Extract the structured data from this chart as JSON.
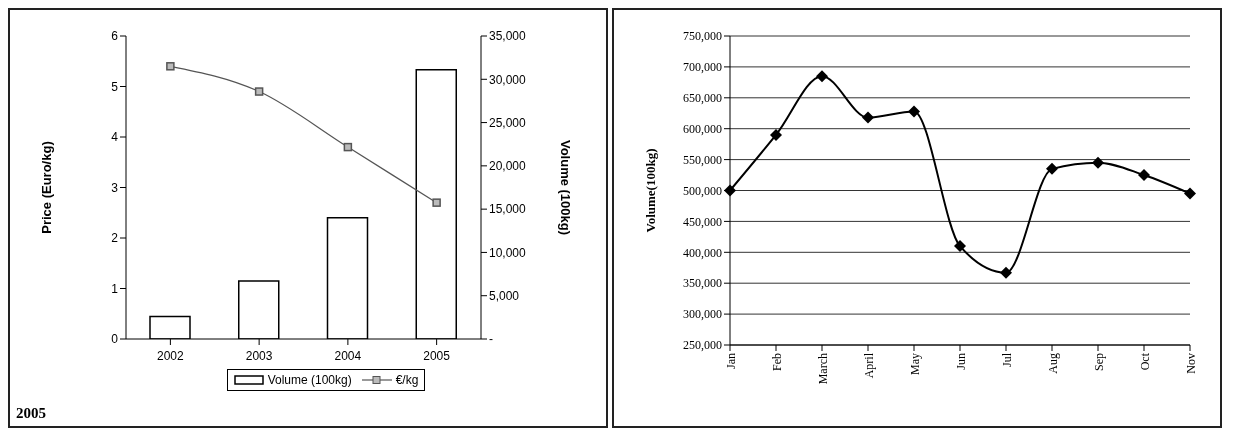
{
  "chart_data": [
    {
      "type": "bar",
      "categories": [
        "2002",
        "2003",
        "2004",
        "2005"
      ],
      "ylabel": "Price (Euro/kg)",
      "y2label": "Volume (100kg)",
      "ylim": [
        0,
        6
      ],
      "yticks": [
        0,
        1,
        2,
        3,
        4,
        5,
        6
      ],
      "y2lim": [
        0,
        35000
      ],
      "y2ticks": [
        {
          "value": 0,
          "label": "-"
        },
        {
          "value": 5000,
          "label": "5,000"
        },
        {
          "value": 10000,
          "label": "10,000"
        },
        {
          "value": 15000,
          "label": "15,000"
        },
        {
          "value": 20000,
          "label": "20,000"
        },
        {
          "value": 25000,
          "label": "25,000"
        },
        {
          "value": 30000,
          "label": "30,000"
        },
        {
          "value": 35000,
          "label": "35,000"
        }
      ],
      "legend": "bottom",
      "marker": "square",
      "grid": false,
      "annotations": [
        "2005"
      ],
      "series": [
        {
          "name": "Volume (100kg)",
          "type": "bar",
          "axis": "y2",
          "color": "#ffffff",
          "values": [
            2600,
            6700,
            14000,
            31100
          ]
        },
        {
          "name": "€/kg",
          "type": "line",
          "color": "#555555",
          "values": [
            5.4,
            4.9,
            3.8,
            2.7
          ]
        }
      ]
    },
    {
      "type": "line",
      "categories": [
        "Jan",
        "Feb",
        "March",
        "April",
        "May",
        "Jun",
        "Jul",
        "Aug",
        "Sep",
        "Oct",
        "Nov"
      ],
      "ylabel": "Volume(100kg)",
      "ylim": [
        250000,
        750000
      ],
      "yticks": [
        {
          "value": 250000,
          "label": "250,000"
        },
        {
          "value": 300000,
          "label": "300,000"
        },
        {
          "value": 350000,
          "label": "350,000"
        },
        {
          "value": 400000,
          "label": "400,000"
        },
        {
          "value": 450000,
          "label": "450,000"
        },
        {
          "value": 500000,
          "label": "500,000"
        },
        {
          "value": 550000,
          "label": "550,000"
        },
        {
          "value": 600000,
          "label": "600,000"
        },
        {
          "value": 650000,
          "label": "650,000"
        },
        {
          "value": 700000,
          "label": "700,000"
        },
        {
          "value": 750000,
          "label": "750,000"
        }
      ],
      "grid": "y",
      "marker": "diamond",
      "series": [
        {
          "color": "#000000",
          "values": [
            500000,
            590000,
            685000,
            618000,
            628000,
            410000,
            367000,
            535000,
            545000,
            525000,
            495000
          ]
        }
      ]
    }
  ]
}
